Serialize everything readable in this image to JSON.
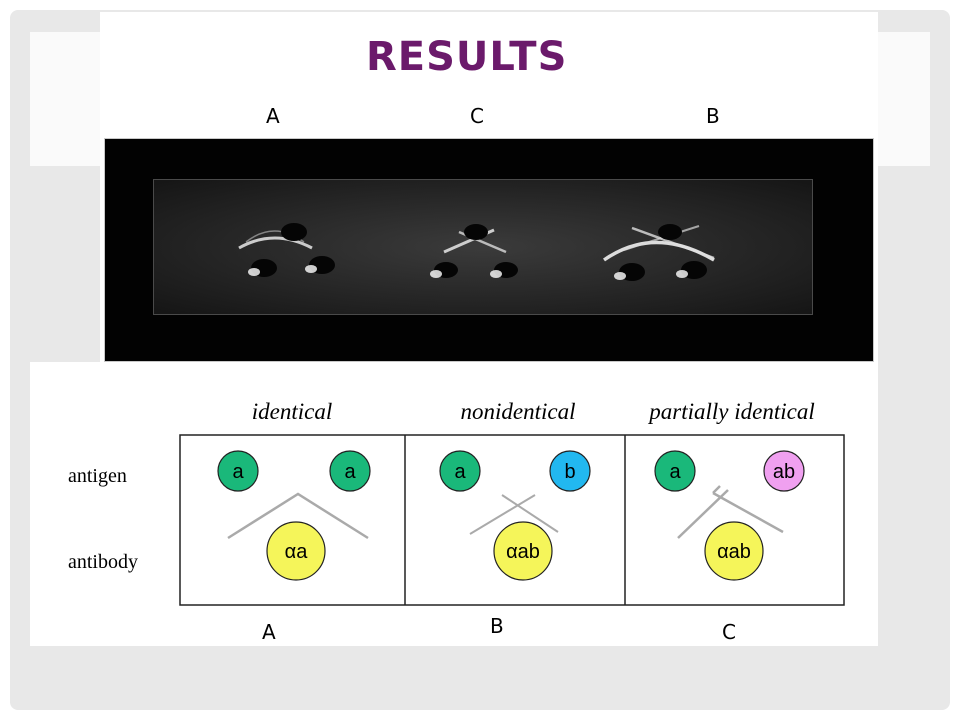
{
  "slide": {
    "title": "RESULTS",
    "title_color": "#6b1a6b",
    "top_labels": [
      "A",
      "C",
      "B"
    ],
    "bottom_labels": [
      "A",
      "B",
      "C"
    ]
  },
  "photo": {
    "description_icon": "gel-diffusion-photo"
  },
  "diagram": {
    "row_labels": {
      "antigen": "antigen",
      "antibody": "antibody"
    },
    "panels": [
      {
        "heading": "identical",
        "antigens": [
          {
            "label": "a",
            "color": "#1ab87a"
          },
          {
            "label": "a",
            "color": "#1ab87a"
          }
        ],
        "antibody": {
          "label": "αa",
          "color": "#f5f55a"
        }
      },
      {
        "heading": "nonidentical",
        "antigens": [
          {
            "label": "a",
            "color": "#1ab87a"
          },
          {
            "label": "b",
            "color": "#22b8f0"
          }
        ],
        "antibody": {
          "label": "αab",
          "color": "#f5f55a"
        }
      },
      {
        "heading": "partially identical",
        "antigens": [
          {
            "label": "a",
            "color": "#1ab87a"
          },
          {
            "label": "ab",
            "color": "#f0a0f0"
          }
        ],
        "antibody": {
          "label": "αab",
          "color": "#f5f55a"
        }
      }
    ]
  }
}
